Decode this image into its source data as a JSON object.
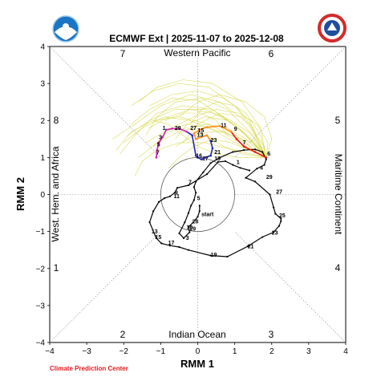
{
  "header": {
    "left_logo": "noaa-logo-icon",
    "right_logo": "national-weather-service-logo-icon"
  },
  "footer": {
    "credit": "Climate Prediction Center"
  },
  "chart_data": {
    "type": "line",
    "title": "ECMWF Ext | 2025-11-07 to 2025-12-08",
    "xlabel": "RMM 1",
    "ylabel": "RMM 2",
    "xlim": [
      -4,
      4
    ],
    "ylim": [
      -4,
      4
    ],
    "xticks": [
      "−4",
      "−3",
      "−2",
      "−1",
      "0",
      "1",
      "2",
      "3",
      "4"
    ],
    "yticks": [
      "−4",
      "−3",
      "−2",
      "−1",
      "0",
      "1",
      "2",
      "3",
      "4"
    ],
    "grid": "dotted diagonals and zero lines",
    "unit_circle_radius": 1,
    "regions": {
      "top": "Western Pacific",
      "bottom": "Indian Ocean",
      "left": "West. Hem. and Africa",
      "right": "Maritime Continent"
    },
    "phase_labels": {
      "p1": "1",
      "p2": "2",
      "p3": "3",
      "p4": "4",
      "p5": "5",
      "p6": "6",
      "p7": "7",
      "p8": "8"
    },
    "colors": {
      "observed": "#000000",
      "ensemble": "#d4d43c",
      "mean_week1": "#e8161b",
      "mean_week2": "#ff8c1a",
      "mean_week3": "#2222bb",
      "mean_week4": "#cc22aa",
      "circle": "#555555",
      "credit": "#e8161b"
    },
    "observed": {
      "name": "",
      "points": [
        [
          1.4,
          0.65
        ],
        [
          1.15,
          0.72
        ],
        [
          0.95,
          0.8
        ],
        [
          0.75,
          0.9
        ],
        [
          0.55,
          0.88
        ],
        [
          0.25,
          0.55
        ],
        [
          -0.25,
          0.25
        ],
        [
          -0.55,
          0.18
        ],
        [
          -0.62,
          0.05
        ],
        [
          -0.75,
          -0.05
        ],
        [
          -0.9,
          -0.1
        ],
        [
          -1.05,
          -0.2
        ],
        [
          -1.2,
          -0.45
        ],
        [
          -1.3,
          -0.75
        ],
        [
          -1.12,
          -1.18
        ],
        [
          -0.98,
          -1.32
        ],
        [
          -0.75,
          -1.38
        ],
        [
          -0.5,
          -1.42
        ],
        [
          -0.25,
          -1.5
        ],
        [
          0.35,
          -1.65
        ],
        [
          0.8,
          -1.68
        ],
        [
          1.35,
          -1.4
        ],
        [
          1.75,
          -1.15
        ],
        [
          2.05,
          -1.02
        ],
        [
          2.2,
          -0.85
        ],
        [
          2.25,
          -0.72
        ],
        [
          2.25,
          -0.65
        ],
        [
          2.1,
          -0.52
        ],
        [
          2.05,
          -0.35
        ],
        [
          1.95,
          0.0
        ],
        [
          1.55,
          0.35
        ],
        [
          1.3,
          0.45
        ],
        [
          1.6,
          0.7
        ],
        [
          1.8,
          0.8
        ],
        [
          1.85,
          0.95
        ],
        [
          1.75,
          1.15
        ],
        [
          1.55,
          1.22
        ],
        [
          1.25,
          1.2
        ],
        [
          0.95,
          1.15
        ],
        [
          0.6,
          1.0
        ],
        [
          0.35,
          0.85
        ],
        [
          0.15,
          0.6
        ],
        [
          -0.05,
          0.35
        ],
        [
          -0.1,
          0.2
        ],
        [
          -0.05,
          0.05
        ],
        [
          -0.1,
          -0.15
        ],
        [
          -0.18,
          -0.3
        ],
        [
          -0.25,
          -0.5
        ],
        [
          -0.35,
          -0.75
        ],
        [
          -0.5,
          -1.05
        ],
        [
          -0.38,
          -1.18
        ],
        [
          -0.22,
          -1.02
        ],
        [
          -0.25,
          -0.88
        ],
        [
          -0.12,
          -0.75
        ],
        [
          0.0,
          -0.6
        ],
        [
          0.05,
          -0.45
        ],
        [
          0.05,
          -0.3
        ]
      ],
      "day_labels": [
        {
          "x": 1.05,
          "y": 0.82,
          "t": "1"
        },
        {
          "x": 1.68,
          "y": 0.67,
          "t": "4"
        },
        {
          "x": 1.85,
          "y": 0.42,
          "t": "29"
        },
        {
          "x": 2.12,
          "y": 0.02,
          "t": "27"
        },
        {
          "x": 2.2,
          "y": -0.62,
          "t": "25"
        },
        {
          "x": 2.0,
          "y": -1.08,
          "t": "23"
        },
        {
          "x": 1.35,
          "y": -1.45,
          "t": "21"
        },
        {
          "x": 0.35,
          "y": -1.68,
          "t": "19"
        },
        {
          "x": -0.8,
          "y": -1.35,
          "t": "17"
        },
        {
          "x": -1.15,
          "y": -1.2,
          "t": "15"
        },
        {
          "x": -1.25,
          "y": -1.05,
          "t": "13"
        },
        {
          "x": -0.65,
          "y": -0.1,
          "t": "11"
        },
        {
          "x": -0.62,
          "y": 0.0,
          "t": "9"
        },
        {
          "x": -0.25,
          "y": 0.28,
          "t": "7"
        },
        {
          "x": -0.02,
          "y": -0.15,
          "t": "5"
        },
        {
          "x": -0.32,
          "y": -1.22,
          "t": "3"
        },
        {
          "x": -0.22,
          "y": -0.98,
          "t": "29"
        },
        {
          "x": -0.3,
          "y": -0.94,
          "t": "30"
        },
        {
          "x": -0.15,
          "y": -0.78,
          "t": "28"
        },
        {
          "x": 0.1,
          "y": -0.58,
          "t": "start"
        }
      ]
    },
    "ensemble_mean": {
      "name": "",
      "points": [
        [
          1.85,
          1.0
        ],
        [
          1.55,
          1.15
        ],
        [
          1.25,
          1.3
        ],
        [
          1.05,
          1.5
        ],
        [
          0.9,
          1.7
        ],
        [
          0.6,
          1.85
        ],
        [
          0.25,
          1.82
        ],
        [
          0.05,
          1.75
        ],
        [
          -0.1,
          1.65
        ],
        [
          -0.05,
          1.5
        ],
        [
          0.25,
          1.6
        ],
        [
          0.35,
          1.45
        ],
        [
          0.4,
          1.25
        ],
        [
          0.35,
          1.05
        ],
        [
          0.2,
          1.0
        ],
        [
          0.1,
          0.95
        ],
        [
          0.0,
          1.0
        ],
        [
          -0.05,
          1.05
        ],
        [
          -0.15,
          1.6
        ],
        [
          -0.3,
          1.7
        ],
        [
          -0.5,
          1.78
        ],
        [
          -0.7,
          1.78
        ],
        [
          -0.85,
          1.75
        ],
        [
          -0.95,
          1.55
        ],
        [
          -1.05,
          1.4
        ],
        [
          -1.1,
          1.2
        ],
        [
          -1.12,
          1.0
        ]
      ],
      "day_labels": [
        {
          "x": 1.88,
          "y": 1.05,
          "t": "6"
        },
        {
          "x": 1.22,
          "y": 1.35,
          "t": "7"
        },
        {
          "x": 0.98,
          "y": 1.72,
          "t": "9"
        },
        {
          "x": 0.62,
          "y": 1.82,
          "t": "11"
        },
        {
          "x": 0.0,
          "y": 1.68,
          "t": "15"
        },
        {
          "x": -0.02,
          "y": 1.56,
          "t": "13"
        },
        {
          "x": 0.35,
          "y": 1.42,
          "t": "23"
        },
        {
          "x": 0.45,
          "y": 1.1,
          "t": "21"
        },
        {
          "x": 0.45,
          "y": 0.92,
          "t": "19"
        },
        {
          "x": 0.12,
          "y": 0.92,
          "t": "17"
        },
        {
          "x": -0.05,
          "y": 1.0,
          "t": "16"
        },
        {
          "x": -0.2,
          "y": 1.75,
          "t": "27"
        },
        {
          "x": -0.62,
          "y": 1.75,
          "t": "29"
        },
        {
          "x": -0.95,
          "y": 1.75,
          "t": "1"
        },
        {
          "x": -1.05,
          "y": 1.5,
          "t": "3"
        },
        {
          "x": -1.1,
          "y": 1.3,
          "t": "5"
        },
        {
          "x": -1.12,
          "y": 1.08,
          "t": "7"
        }
      ]
    },
    "ensemble_members": [
      [
        [
          1.85,
          1.0
        ],
        [
          1.5,
          1.45
        ],
        [
          1.0,
          1.9
        ],
        [
          0.4,
          2.2
        ],
        [
          -0.2,
          2.3
        ],
        [
          -0.8,
          2.1
        ],
        [
          -1.3,
          1.8
        ]
      ],
      [
        [
          1.85,
          1.0
        ],
        [
          1.3,
          1.6
        ],
        [
          0.7,
          2.1
        ],
        [
          0.0,
          2.55
        ],
        [
          -0.7,
          2.6
        ],
        [
          -1.3,
          2.3
        ],
        [
          -1.8,
          1.9
        ]
      ],
      [
        [
          1.85,
          1.0
        ],
        [
          1.4,
          1.2
        ],
        [
          0.9,
          1.4
        ],
        [
          0.4,
          1.5
        ],
        [
          -0.1,
          1.3
        ],
        [
          -0.5,
          1.0
        ],
        [
          -0.8,
          0.7
        ]
      ],
      [
        [
          1.85,
          1.0
        ],
        [
          1.7,
          1.6
        ],
        [
          1.3,
          2.2
        ],
        [
          0.7,
          2.6
        ],
        [
          0.0,
          2.8
        ],
        [
          -0.7,
          2.7
        ],
        [
          -1.3,
          2.4
        ]
      ],
      [
        [
          1.85,
          1.0
        ],
        [
          1.2,
          1.3
        ],
        [
          0.5,
          1.7
        ],
        [
          -0.2,
          2.0
        ],
        [
          -0.9,
          2.1
        ],
        [
          -1.5,
          1.8
        ],
        [
          -2.0,
          1.4
        ]
      ],
      [
        [
          1.85,
          1.0
        ],
        [
          1.5,
          1.8
        ],
        [
          1.0,
          2.4
        ],
        [
          0.3,
          2.9
        ],
        [
          -0.5,
          3.0
        ],
        [
          -1.2,
          2.8
        ],
        [
          -1.8,
          2.4
        ]
      ],
      [
        [
          1.85,
          1.0
        ],
        [
          1.1,
          1.0
        ],
        [
          0.5,
          1.1
        ],
        [
          0.0,
          1.3
        ],
        [
          -0.4,
          1.6
        ],
        [
          -0.8,
          1.9
        ],
        [
          -1.2,
          2.0
        ]
      ],
      [
        [
          1.85,
          1.0
        ],
        [
          1.6,
          1.3
        ],
        [
          1.2,
          1.7
        ],
        [
          0.8,
          2.0
        ],
        [
          0.2,
          2.1
        ],
        [
          -0.3,
          1.9
        ],
        [
          -0.6,
          1.5
        ]
      ],
      [
        [
          1.85,
          1.0
        ],
        [
          2.0,
          1.5
        ],
        [
          1.8,
          2.1
        ],
        [
          1.3,
          2.5
        ],
        [
          0.6,
          2.7
        ],
        [
          0.0,
          2.5
        ],
        [
          -0.5,
          2.1
        ]
      ],
      [
        [
          1.85,
          1.0
        ],
        [
          1.3,
          1.5
        ],
        [
          0.8,
          1.8
        ],
        [
          0.2,
          1.9
        ],
        [
          -0.5,
          1.7
        ],
        [
          -1.1,
          1.4
        ],
        [
          -1.6,
          1.0
        ]
      ],
      [
        [
          1.85,
          1.0
        ],
        [
          1.4,
          1.9
        ],
        [
          0.6,
          2.5
        ],
        [
          -0.2,
          2.7
        ],
        [
          -1.0,
          2.4
        ],
        [
          -1.7,
          1.9
        ],
        [
          -2.3,
          1.5
        ]
      ],
      [
        [
          1.85,
          1.0
        ],
        [
          1.2,
          1.7
        ],
        [
          0.4,
          2.3
        ],
        [
          -0.4,
          2.4
        ],
        [
          -1.1,
          2.2
        ],
        [
          -1.7,
          1.6
        ],
        [
          -2.1,
          1.1
        ]
      ],
      [
        [
          1.85,
          1.0
        ],
        [
          1.6,
          1.5
        ],
        [
          1.4,
          2.0
        ],
        [
          1.0,
          2.4
        ],
        [
          0.5,
          2.5
        ],
        [
          0.1,
          2.3
        ],
        [
          -0.2,
          1.9
        ]
      ],
      [
        [
          1.85,
          1.0
        ],
        [
          1.0,
          1.2
        ],
        [
          0.2,
          1.4
        ],
        [
          -0.5,
          1.4
        ],
        [
          -1.1,
          1.2
        ],
        [
          -1.5,
          0.9
        ],
        [
          -1.7,
          0.5
        ]
      ],
      [
        [
          1.85,
          1.0
        ],
        [
          1.5,
          1.4
        ],
        [
          0.9,
          1.6
        ],
        [
          0.3,
          1.8
        ],
        [
          -0.3,
          1.9
        ],
        [
          -0.9,
          1.7
        ],
        [
          -1.4,
          1.4
        ]
      ],
      [
        [
          1.85,
          1.0
        ],
        [
          1.7,
          1.8
        ],
        [
          1.2,
          2.5
        ],
        [
          0.4,
          3.0
        ],
        [
          -0.4,
          3.1
        ],
        [
          -1.1,
          2.9
        ],
        [
          -1.6,
          2.5
        ]
      ],
      [
        [
          1.85,
          1.0
        ],
        [
          1.3,
          1.3
        ],
        [
          0.8,
          1.6
        ],
        [
          0.5,
          2.0
        ],
        [
          0.1,
          2.2
        ],
        [
          -0.4,
          2.2
        ],
        [
          -0.9,
          2.0
        ]
      ],
      [
        [
          1.85,
          1.0
        ],
        [
          1.9,
          1.4
        ],
        [
          1.6,
          1.9
        ],
        [
          1.1,
          2.2
        ],
        [
          0.5,
          2.3
        ],
        [
          -0.1,
          2.1
        ],
        [
          -0.7,
          1.8
        ]
      ],
      [
        [
          1.85,
          1.0
        ],
        [
          1.2,
          1.1
        ],
        [
          0.7,
          1.3
        ],
        [
          0.2,
          1.6
        ],
        [
          -0.3,
          1.8
        ],
        [
          -0.8,
          1.7
        ],
        [
          -1.2,
          1.3
        ]
      ],
      [
        [
          1.85,
          1.0
        ],
        [
          1.5,
          1.6
        ],
        [
          0.9,
          2.0
        ],
        [
          0.2,
          2.3
        ],
        [
          -0.6,
          2.3
        ],
        [
          -1.3,
          2.0
        ],
        [
          -1.9,
          1.6
        ]
      ],
      [
        [
          1.85,
          1.0
        ],
        [
          1.8,
          1.3
        ],
        [
          1.5,
          1.7
        ],
        [
          1.2,
          2.1
        ],
        [
          0.6,
          2.2
        ],
        [
          0.0,
          1.9
        ],
        [
          -0.4,
          1.4
        ]
      ],
      [
        [
          1.85,
          1.0
        ],
        [
          1.1,
          1.5
        ],
        [
          0.3,
          1.9
        ],
        [
          -0.5,
          2.1
        ],
        [
          -1.2,
          2.0
        ],
        [
          -1.8,
          1.7
        ],
        [
          -2.2,
          1.2
        ]
      ],
      [
        [
          1.85,
          1.0
        ],
        [
          1.4,
          1.7
        ],
        [
          0.8,
          2.3
        ],
        [
          0.1,
          2.6
        ],
        [
          -0.6,
          2.5
        ],
        [
          -1.1,
          2.1
        ],
        [
          -1.4,
          1.6
        ]
      ],
      [
        [
          1.85,
          1.0
        ],
        [
          1.6,
          1.1
        ],
        [
          1.3,
          1.4
        ],
        [
          0.9,
          1.7
        ],
        [
          0.4,
          1.7
        ],
        [
          -0.1,
          1.6
        ],
        [
          -0.6,
          1.3
        ]
      ]
    ]
  }
}
